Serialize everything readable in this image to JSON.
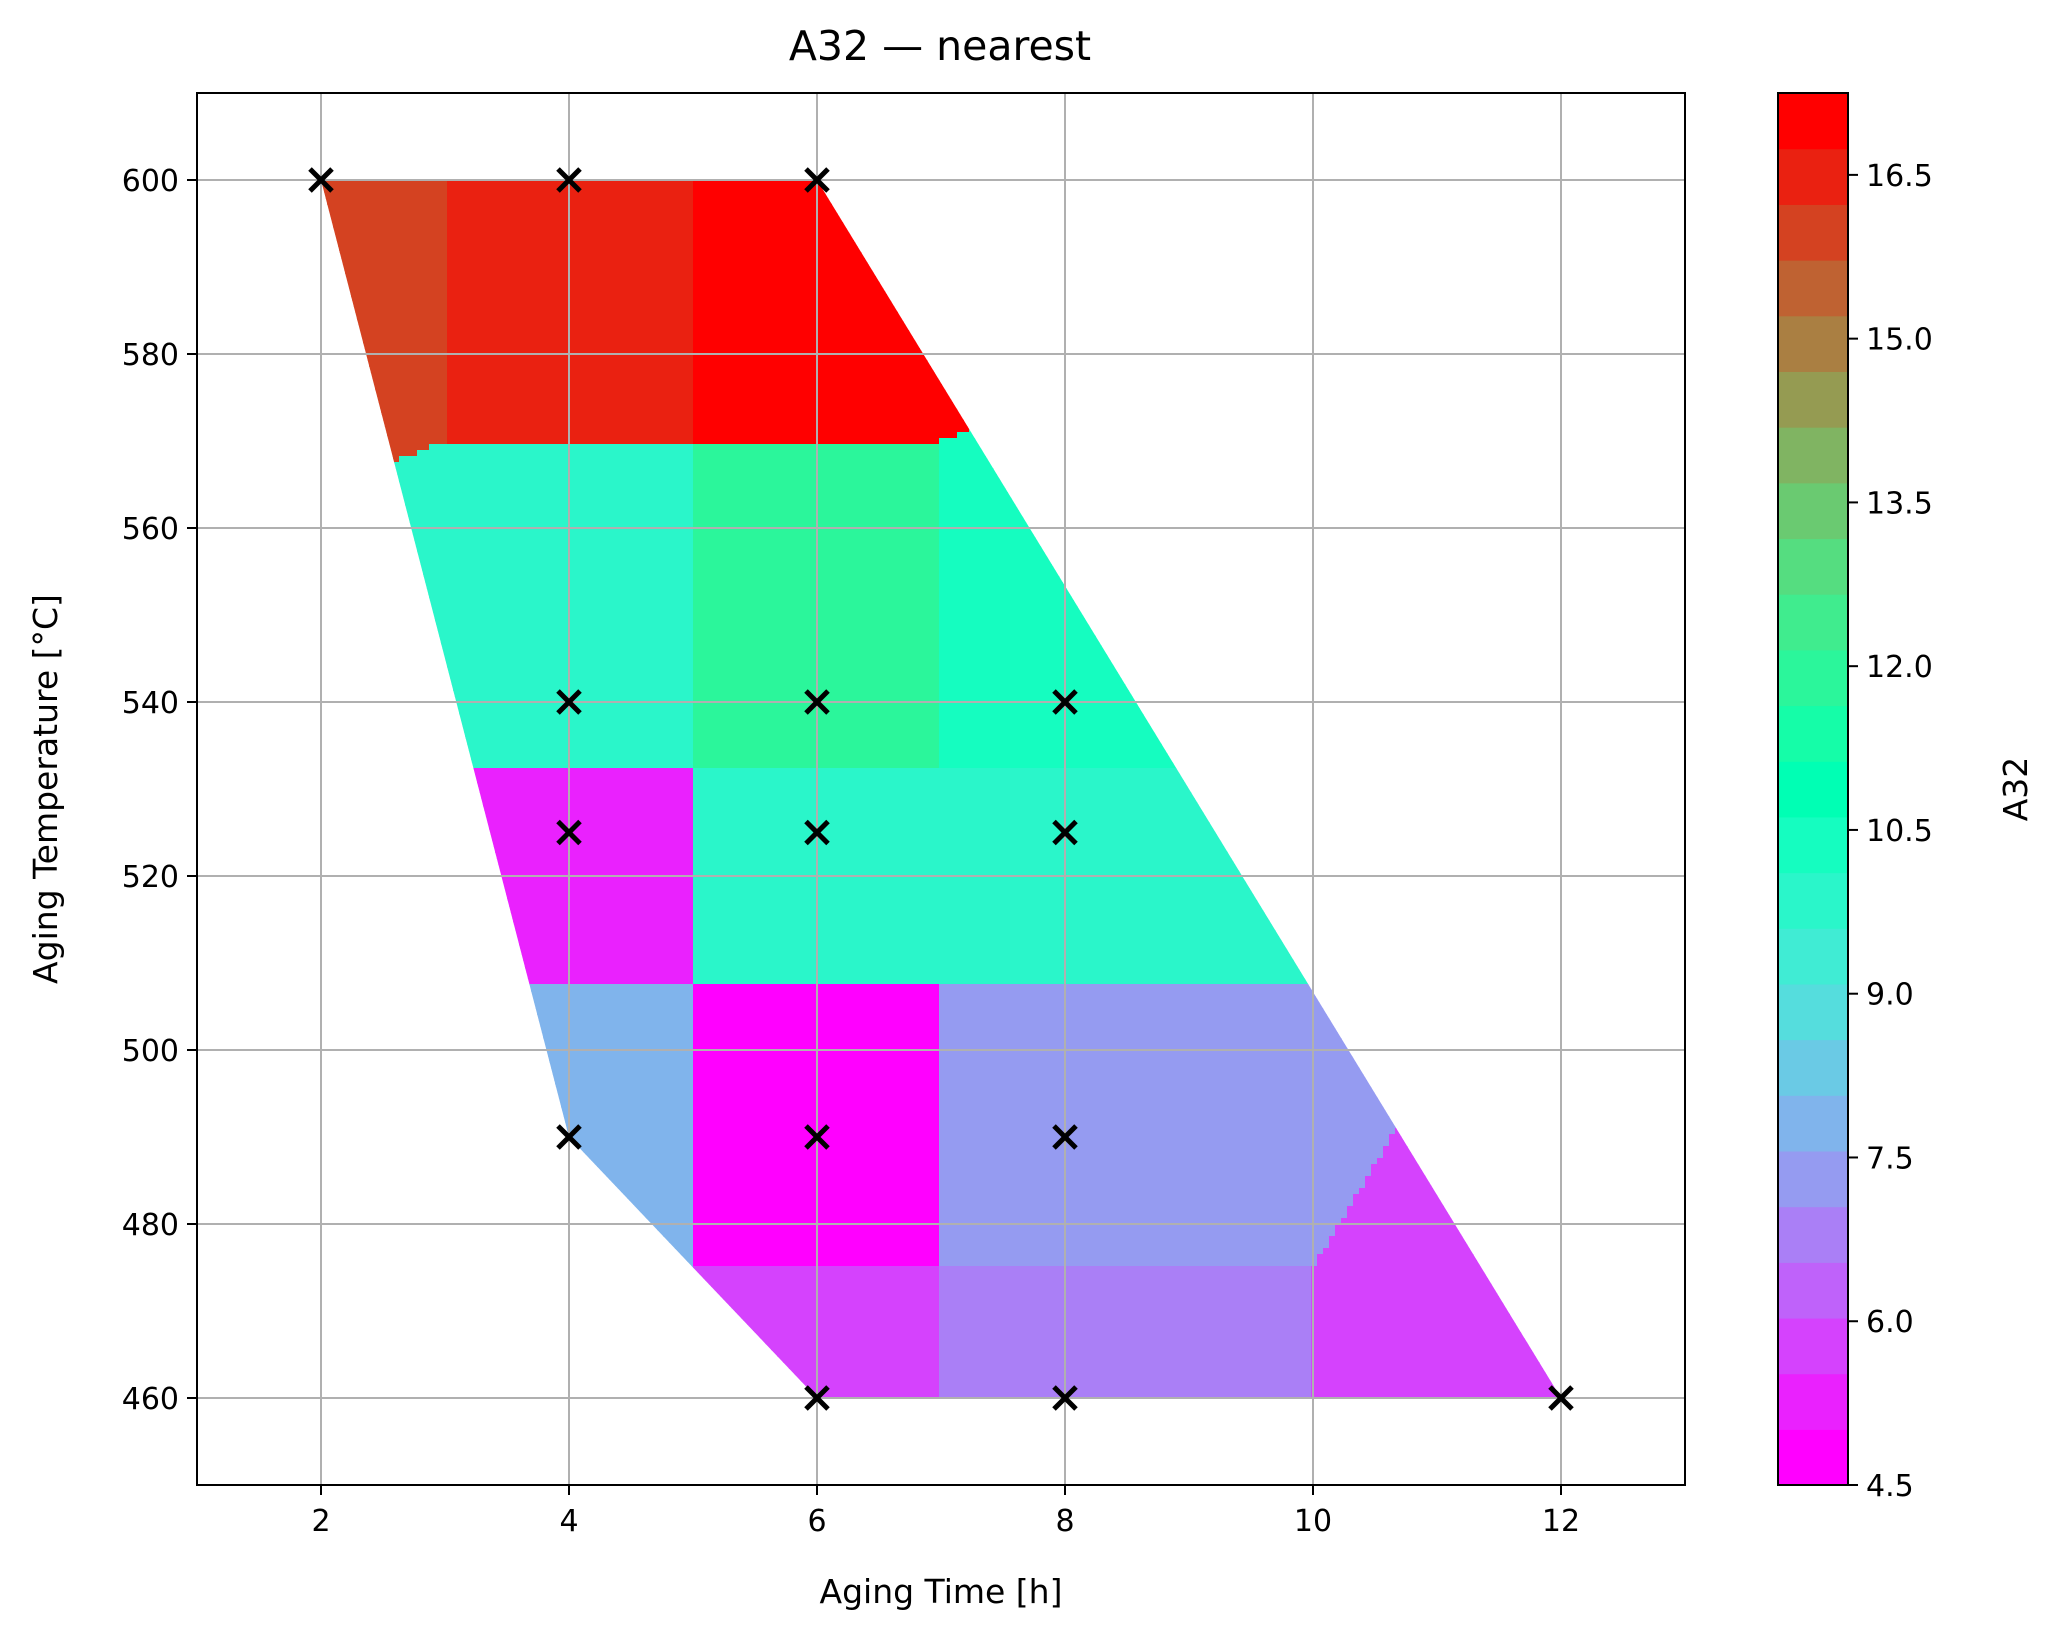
{
  "chart_data": {
    "type": "heatmap",
    "title": "A32 — nearest",
    "xlabel": "Aging Time [h]",
    "ylabel": "Aging Temperature [°C]",
    "colorbar_label": "A32",
    "xlim": [
      1,
      13
    ],
    "ylim": [
      450,
      610
    ],
    "x_ticks": [
      2,
      4,
      6,
      8,
      10,
      12
    ],
    "y_ticks": [
      460,
      480,
      500,
      520,
      540,
      560,
      580,
      600
    ],
    "colorbar_range": [
      4.5,
      17.25
    ],
    "colorbar_ticks": [
      "4.5",
      "6.0",
      "7.5",
      "9.0",
      "10.5",
      "12.0",
      "13.5",
      "15.0",
      "16.5"
    ],
    "colorbar_levels": 25,
    "colormap": "rainbow",
    "grid": true,
    "interpolation": "nearest",
    "points": [
      {
        "time": 2,
        "temp": 600,
        "value": 15.9
      },
      {
        "time": 4,
        "temp": 600,
        "value": 16.6
      },
      {
        "time": 6,
        "temp": 600,
        "value": 17.2
      },
      {
        "time": 4,
        "temp": 540,
        "value": 9.8
      },
      {
        "time": 6,
        "temp": 540,
        "value": 11.7
      },
      {
        "time": 8,
        "temp": 540,
        "value": 10.5
      },
      {
        "time": 4,
        "temp": 525,
        "value": 5.2
      },
      {
        "time": 6,
        "temp": 525,
        "value": 9.8
      },
      {
        "time": 8,
        "temp": 525,
        "value": 9.8
      },
      {
        "time": 4,
        "temp": 490,
        "value": 7.8
      },
      {
        "time": 6,
        "temp": 490,
        "value": 4.7
      },
      {
        "time": 8,
        "temp": 490,
        "value": 7.2
      },
      {
        "time": 6,
        "temp": 460,
        "value": 5.6
      },
      {
        "time": 8,
        "temp": 460,
        "value": 6.6
      },
      {
        "time": 12,
        "temp": 460,
        "value": 5.6
      }
    ]
  }
}
